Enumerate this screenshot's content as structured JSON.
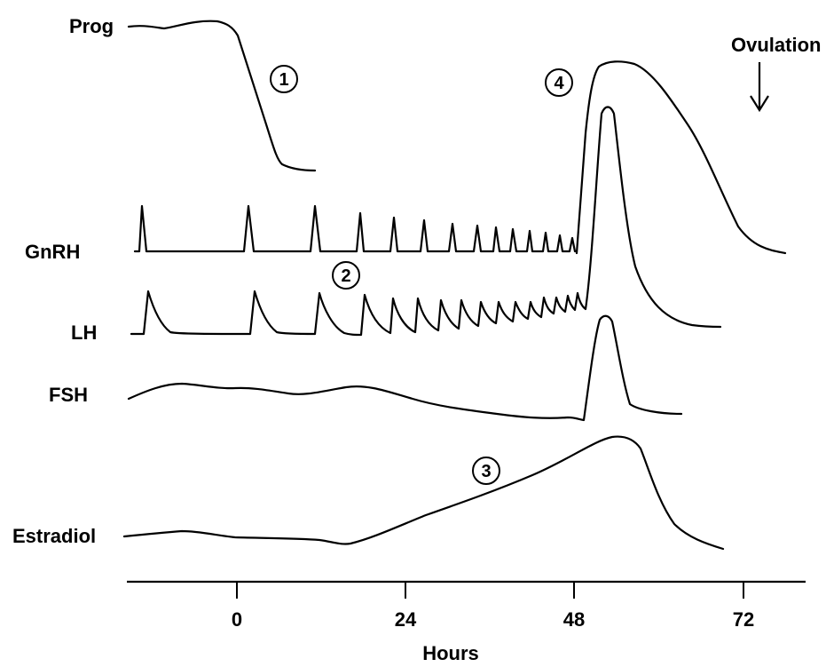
{
  "hormones": {
    "prog": "Prog",
    "gnrh": "GnRH",
    "lh": "LH",
    "fsh": "FSH",
    "estradiol": "Estradiol"
  },
  "annotations": {
    "ovulation": "Ovulation",
    "marker_1": "1",
    "marker_2": "2",
    "marker_3": "3",
    "marker_4": "4"
  },
  "axis": {
    "title": "Hours",
    "ticks": [
      "0",
      "24",
      "48",
      "72"
    ]
  }
}
